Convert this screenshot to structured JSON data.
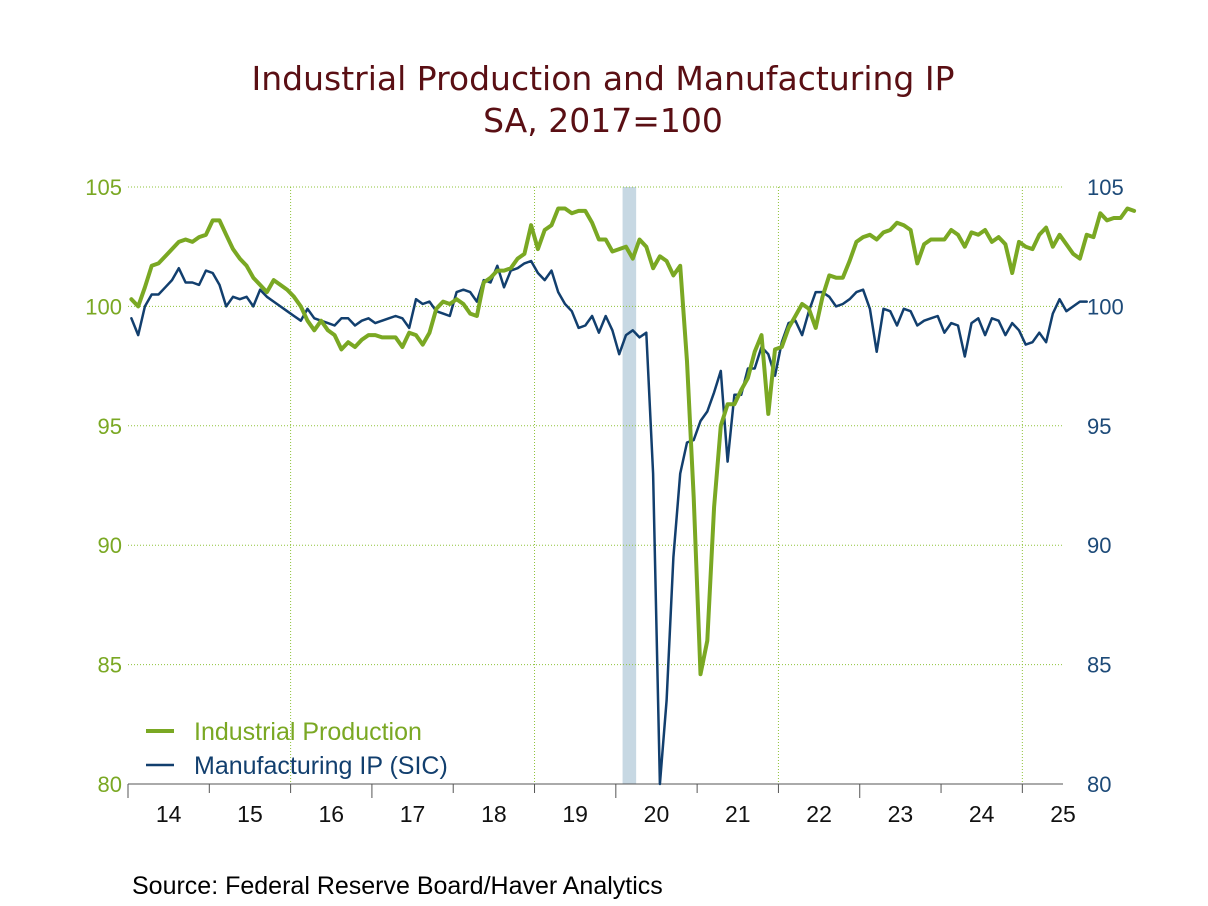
{
  "chart_data": {
    "type": "line",
    "title": "Industrial Production and Manufacturing IP",
    "subtitle": "SA, 2017=100",
    "source": "Source:  Federal Reserve Board/Haver Analytics",
    "x_tick_labels": [
      "14",
      "15",
      "16",
      "17",
      "18",
      "19",
      "20",
      "21",
      "22",
      "23",
      "24",
      "25"
    ],
    "x_range": [
      2014.0,
      2025.5
    ],
    "ylim_left": [
      80,
      105
    ],
    "ylim_right": [
      80,
      105
    ],
    "y_ticks_left": [
      "80",
      "85",
      "90",
      "95",
      "100",
      "105"
    ],
    "y_ticks_right": [
      "80",
      "85",
      "90",
      "95",
      "100",
      "105"
    ],
    "grid": true,
    "legend_position": "bottom-left",
    "recession_band": [
      2020.083,
      2020.25
    ],
    "colors": {
      "industrial_production": "#7aa823",
      "manufacturing": "#123f6e",
      "left_axis": "#7aa823",
      "right_axis": "#1d4a78",
      "recession": "#c7d8e3",
      "grid": "#8fc33a",
      "title": "#5a0f14",
      "source": "#5a2a6f"
    },
    "series": [
      {
        "name": "Industrial Production",
        "values": [
          100.3,
          100.0,
          100.8,
          101.7,
          101.8,
          102.1,
          102.4,
          102.7,
          102.8,
          102.7,
          102.9,
          103.0,
          103.6,
          103.6,
          103.0,
          102.4,
          102.0,
          101.7,
          101.2,
          100.9,
          100.6,
          101.1,
          100.9,
          100.7,
          100.4,
          100.0,
          99.4,
          99.0,
          99.4,
          99.0,
          98.8,
          98.2,
          98.5,
          98.3,
          98.6,
          98.8,
          98.8,
          98.7,
          98.7,
          98.7,
          98.3,
          98.9,
          98.8,
          98.4,
          98.9,
          99.9,
          100.2,
          100.1,
          100.3,
          100.1,
          99.7,
          99.6,
          101.0,
          101.2,
          101.5,
          101.5,
          101.6,
          102.0,
          102.2,
          103.4,
          102.4,
          103.2,
          103.4,
          104.1,
          104.1,
          103.9,
          104.0,
          104.0,
          103.5,
          102.8,
          102.8,
          102.3,
          102.4,
          102.5,
          102.0,
          102.8,
          102.5,
          101.6,
          102.1,
          101.9,
          101.3,
          101.7,
          97.7,
          92.0,
          84.6,
          86.0,
          91.6,
          95.0,
          95.9,
          95.9,
          96.5,
          97.0,
          98.1,
          98.8,
          95.5,
          98.2,
          98.3,
          99.1,
          99.6,
          100.1,
          99.9,
          99.1,
          100.4,
          101.3,
          101.2,
          101.2,
          101.9,
          102.7,
          102.9,
          103.0,
          102.8,
          103.1,
          103.2,
          103.5,
          103.4,
          103.2,
          101.8,
          102.6,
          102.8,
          102.8,
          102.8,
          103.2,
          103.0,
          102.5,
          103.1,
          103.0,
          103.2,
          102.7,
          102.9,
          102.6,
          101.4,
          102.7,
          102.5,
          102.4,
          103.0,
          103.3,
          102.5,
          103.0,
          102.6,
          102.2,
          102.0,
          103.0,
          102.9,
          103.9,
          103.6,
          103.7,
          103.7,
          104.1,
          104.0
        ]
      },
      {
        "name": "Manufacturing IP (SIC)",
        "values": [
          99.5,
          98.8,
          100.0,
          100.5,
          100.5,
          100.8,
          101.1,
          101.6,
          101.0,
          101.0,
          100.9,
          101.5,
          101.4,
          100.9,
          100.0,
          100.4,
          100.3,
          100.4,
          100.0,
          100.7,
          100.4,
          100.2,
          100.0,
          99.8,
          99.6,
          99.4,
          99.9,
          99.5,
          99.4,
          99.3,
          99.2,
          99.5,
          99.5,
          99.2,
          99.4,
          99.5,
          99.3,
          99.4,
          99.5,
          99.6,
          99.5,
          99.1,
          100.3,
          100.1,
          100.2,
          99.8,
          99.7,
          99.6,
          100.6,
          100.7,
          100.6,
          100.2,
          101.1,
          101.0,
          101.7,
          100.8,
          101.5,
          101.6,
          101.8,
          101.9,
          101.4,
          101.1,
          101.5,
          100.6,
          100.1,
          99.8,
          99.1,
          99.2,
          99.6,
          98.9,
          99.6,
          99.0,
          98.0,
          98.8,
          99.0,
          98.7,
          98.9,
          93.0,
          80.0,
          83.5,
          89.5,
          93.0,
          94.3,
          94.4,
          95.2,
          95.6,
          96.4,
          97.3,
          93.5,
          96.3,
          96.3,
          97.4,
          97.4,
          98.3,
          98.0,
          97.1,
          98.5,
          99.3,
          99.4,
          98.8,
          99.8,
          100.6,
          100.6,
          100.4,
          100.0,
          100.1,
          100.3,
          100.6,
          100.7,
          99.9,
          98.1,
          99.9,
          99.8,
          99.2,
          99.9,
          99.8,
          99.2,
          99.4,
          99.5,
          99.6,
          98.9,
          99.3,
          99.2,
          97.9,
          99.3,
          99.5,
          98.8,
          99.5,
          99.4,
          98.8,
          99.3,
          99.0,
          98.4,
          98.5,
          98.9,
          98.5,
          99.7,
          100.3,
          99.8,
          100.0,
          100.2,
          100.2
        ]
      }
    ]
  }
}
